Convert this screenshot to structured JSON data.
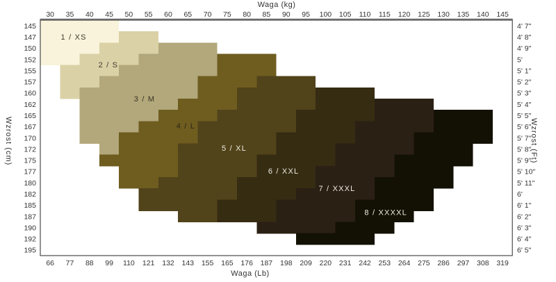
{
  "chart_data": {
    "type": "heatmap",
    "title": "Size chart: height vs weight with size regions 1/XS to 8/XXXXL",
    "grid": {
      "cols": 24,
      "rows": 21,
      "grid_lines": false,
      "legend": "none"
    },
    "axes": {
      "top": {
        "title": "Waga  (kg)",
        "ticks": [
          "30",
          "35",
          "40",
          "45",
          "50",
          "55",
          "60",
          "65",
          "70",
          "75",
          "80",
          "85",
          "90",
          "95",
          "100",
          "105",
          "110",
          "115",
          "120",
          "125",
          "130",
          "135",
          "140",
          "145"
        ]
      },
      "bottom": {
        "title": "Waga  (Lb)",
        "ticks": [
          "66",
          "77",
          "88",
          "99",
          "110",
          "121",
          "132",
          "143",
          "155",
          "165",
          "176",
          "187",
          "198",
          "209",
          "220",
          "231",
          "242",
          "253",
          "264",
          "275",
          "286",
          "297",
          "308",
          "319"
        ]
      },
      "left": {
        "title": "Wzrost  (cm)",
        "ticks": [
          "145",
          "147",
          "150",
          "152",
          "155",
          "157",
          "160",
          "162",
          "165",
          "167",
          "170",
          "172",
          "175",
          "177",
          "180",
          "182",
          "185",
          "187",
          "190",
          "192",
          "195"
        ]
      },
      "right": {
        "title": "Wzrost  (Ft)",
        "ticks": [
          "4' 7\"",
          "4' 8\"",
          "4' 9\"",
          "5'",
          "5' 1\"",
          "5' 2\"",
          "5' 3\"",
          "5' 4\"",
          "5' 5\"",
          "5' 6\"",
          "5' 7\"",
          "5' 8\"",
          "5' 9\"",
          "5' 10\"",
          "5' 11\"",
          "6'",
          "6' 1\"",
          "6' 2\"",
          "6' 3\"",
          "6' 4\"",
          "6' 5\""
        ]
      }
    },
    "series": [
      {
        "name": "1 / XS",
        "color": "#f8f3da",
        "label_color": "#3f3b2c",
        "label_at": {
          "col": 1.7,
          "row": 1.5
        },
        "cells": [
          [
            0,
            0,
            3
          ],
          [
            1,
            0,
            3
          ],
          [
            2,
            0,
            2
          ],
          [
            3,
            0,
            1
          ]
        ]
      },
      {
        "name": "2 / S",
        "color": "#dbd1a7",
        "label_color": "#3f3b2c",
        "label_at": {
          "col": 3.46,
          "row": 3.95
        },
        "cells": [
          [
            1,
            4,
            5
          ],
          [
            2,
            3,
            5
          ],
          [
            3,
            2,
            4
          ],
          [
            4,
            1,
            3
          ],
          [
            5,
            1,
            2
          ],
          [
            6,
            1,
            1
          ]
        ]
      },
      {
        "name": "3 / M",
        "color": "#b2a87b",
        "label_color": "#3a3424",
        "label_at": {
          "col": 5.3,
          "row": 7.0
        },
        "cells": [
          [
            2,
            6,
            8
          ],
          [
            3,
            5,
            8
          ],
          [
            4,
            4,
            8
          ],
          [
            5,
            3,
            7
          ],
          [
            6,
            2,
            7
          ],
          [
            7,
            2,
            6
          ],
          [
            8,
            2,
            5
          ],
          [
            9,
            2,
            4
          ],
          [
            10,
            2,
            3
          ],
          [
            11,
            3,
            3
          ]
        ]
      },
      {
        "name": "4 / L",
        "color": "#6f5d20",
        "label_color": "#2e2614",
        "label_at": {
          "col": 7.4,
          "row": 9.42
        },
        "cells": [
          [
            3,
            9,
            11
          ],
          [
            4,
            9,
            11
          ],
          [
            5,
            8,
            10
          ],
          [
            6,
            8,
            9
          ],
          [
            7,
            7,
            9
          ],
          [
            8,
            6,
            8
          ],
          [
            9,
            5,
            7
          ],
          [
            10,
            4,
            7
          ],
          [
            11,
            4,
            6
          ],
          [
            12,
            3,
            6
          ],
          [
            13,
            4,
            6
          ],
          [
            14,
            4,
            5
          ]
        ]
      },
      {
        "name": "5 / XL",
        "color": "#51431a",
        "label_color": "#efece1",
        "label_at": {
          "col": 9.86,
          "row": 11.4
        },
        "cells": [
          [
            5,
            11,
            13
          ],
          [
            6,
            10,
            13
          ],
          [
            7,
            10,
            13
          ],
          [
            8,
            9,
            12
          ],
          [
            9,
            8,
            12
          ],
          [
            10,
            8,
            11
          ],
          [
            11,
            7,
            11
          ],
          [
            12,
            7,
            10
          ],
          [
            13,
            7,
            10
          ],
          [
            14,
            6,
            9
          ],
          [
            15,
            5,
            9
          ],
          [
            16,
            5,
            8
          ],
          [
            17,
            7,
            8
          ]
        ]
      },
      {
        "name": "6 / XXL",
        "color": "#362c12",
        "label_color": "#efece1",
        "label_at": {
          "col": 12.37,
          "row": 13.44
        },
        "cells": [
          [
            6,
            14,
            16
          ],
          [
            7,
            14,
            16
          ],
          [
            8,
            13,
            16
          ],
          [
            9,
            13,
            15
          ],
          [
            10,
            12,
            15
          ],
          [
            11,
            12,
            14
          ],
          [
            12,
            11,
            14
          ],
          [
            13,
            11,
            13
          ],
          [
            14,
            10,
            13
          ],
          [
            15,
            10,
            12
          ],
          [
            16,
            9,
            11
          ],
          [
            17,
            9,
            11
          ]
        ]
      },
      {
        "name": "7 / XXXL",
        "color": "#2b2014",
        "label_color": "#efece1",
        "label_at": {
          "col": 15.09,
          "row": 15.0
        },
        "cells": [
          [
            7,
            17,
            19
          ],
          [
            8,
            17,
            19
          ],
          [
            9,
            16,
            19
          ],
          [
            10,
            16,
            18
          ],
          [
            11,
            15,
            18
          ],
          [
            12,
            15,
            17
          ],
          [
            13,
            14,
            17
          ],
          [
            14,
            14,
            16
          ],
          [
            15,
            13,
            16
          ],
          [
            16,
            12,
            15
          ],
          [
            17,
            12,
            15
          ],
          [
            18,
            11,
            14
          ]
        ]
      },
      {
        "name": "8 / XXXXL",
        "color": "#131104",
        "label_color": "#efece1",
        "label_at": {
          "col": 17.57,
          "row": 17.12
        },
        "cells": [
          [
            8,
            20,
            22
          ],
          [
            9,
            20,
            22
          ],
          [
            10,
            19,
            22
          ],
          [
            11,
            19,
            21
          ],
          [
            12,
            18,
            21
          ],
          [
            13,
            18,
            20
          ],
          [
            14,
            17,
            20
          ],
          [
            15,
            17,
            19
          ],
          [
            16,
            16,
            19
          ],
          [
            17,
            16,
            18
          ],
          [
            18,
            15,
            17
          ],
          [
            19,
            13,
            16
          ]
        ]
      }
    ],
    "style": {
      "plot_border_color": "#4a4a4a",
      "top_axis_line_color": "#7a7a7a",
      "tick_color": "#333333",
      "background": "#ffffff"
    }
  }
}
